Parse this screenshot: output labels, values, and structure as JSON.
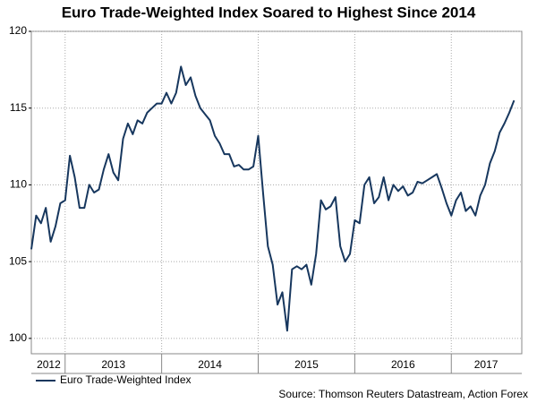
{
  "chart_data": {
    "type": "line",
    "title": "Euro Trade-Weighted Index Soared to Highest Since 2014",
    "source": "Source: Thomson Reuters Datastream, Action Forex",
    "legend": "bottom-left",
    "grid": true,
    "xlim": [
      2012.65,
      2017.73
    ],
    "ylim": [
      99,
      120
    ],
    "yticks": [
      100,
      105,
      110,
      115,
      120
    ],
    "xticks": [
      {
        "value": 2012.83,
        "label": "2012"
      },
      {
        "value": 2013.5,
        "label": "2013"
      },
      {
        "value": 2014.5,
        "label": "2014"
      },
      {
        "value": 2015.5,
        "label": "2015"
      },
      {
        "value": 2016.5,
        "label": "2016"
      },
      {
        "value": 2017.36,
        "label": "2017"
      }
    ],
    "xgrid": [
      2013,
      2014,
      2015,
      2016,
      2017
    ],
    "x": [
      2012.65,
      2012.7,
      2012.75,
      2012.8,
      2012.85,
      2012.9,
      2012.95,
      2013,
      2013.05,
      2013.1,
      2013.15,
      2013.2,
      2013.25,
      2013.3,
      2013.35,
      2013.4,
      2013.45,
      2013.5,
      2013.55,
      2013.6,
      2013.65,
      2013.7,
      2013.75,
      2013.8,
      2013.85,
      2013.9,
      2013.95,
      2014,
      2014.05,
      2014.1,
      2014.15,
      2014.2,
      2014.25,
      2014.3,
      2014.35,
      2014.4,
      2014.45,
      2014.5,
      2014.55,
      2014.6,
      2014.65,
      2014.7,
      2014.75,
      2014.8,
      2014.85,
      2014.9,
      2014.95,
      2015,
      2015.05,
      2015.1,
      2015.15,
      2015.2,
      2015.25,
      2015.3,
      2015.35,
      2015.4,
      2015.45,
      2015.5,
      2015.55,
      2015.6,
      2015.65,
      2015.7,
      2015.75,
      2015.8,
      2015.85,
      2015.9,
      2015.95,
      2016,
      2016.05,
      2016.1,
      2016.15,
      2016.2,
      2016.25,
      2016.3,
      2016.35,
      2016.4,
      2016.45,
      2016.5,
      2016.55,
      2016.6,
      2016.65,
      2016.7,
      2016.75,
      2016.8,
      2016.85,
      2016.9,
      2016.95,
      2017,
      2017.05,
      2017.1,
      2017.15,
      2017.2,
      2017.25,
      2017.3,
      2017.35,
      2017.4,
      2017.45,
      2017.5,
      2017.55,
      2017.6,
      2017.65
    ],
    "series": [
      {
        "name": "Euro Trade-Weighted Index",
        "color": "#17375e",
        "values": [
          105.8,
          108,
          107.5,
          108.5,
          106.3,
          107.3,
          108.8,
          109,
          111.9,
          110.5,
          108.5,
          108.5,
          110,
          109.5,
          109.7,
          111,
          112,
          110.8,
          110.3,
          113,
          114,
          113.3,
          114.2,
          114,
          114.7,
          115,
          115.3,
          115.3,
          116,
          115.3,
          116,
          117.7,
          116.5,
          117,
          115.8,
          115,
          114.6,
          114.2,
          113.2,
          112.7,
          112,
          112,
          111.2,
          111.3,
          111,
          111,
          111.2,
          113.2,
          109.5,
          106,
          104.8,
          102.2,
          103,
          100.5,
          104.5,
          104.7,
          104.5,
          104.8,
          103.5,
          105.5,
          109,
          108.4,
          108.6,
          109.2,
          106,
          105,
          105.5,
          107.7,
          107.5,
          110,
          110.5,
          108.8,
          109.2,
          110.5,
          109,
          110,
          109.6,
          109.9,
          109.3,
          109.5,
          110.2,
          110.1,
          110.3,
          110.5,
          110.7,
          109.8,
          108.8,
          108,
          109,
          109.5,
          108.3,
          108.6,
          108,
          109.3,
          110,
          111.4,
          112.2,
          113.4,
          114,
          114.7,
          115.5
        ]
      }
    ]
  }
}
